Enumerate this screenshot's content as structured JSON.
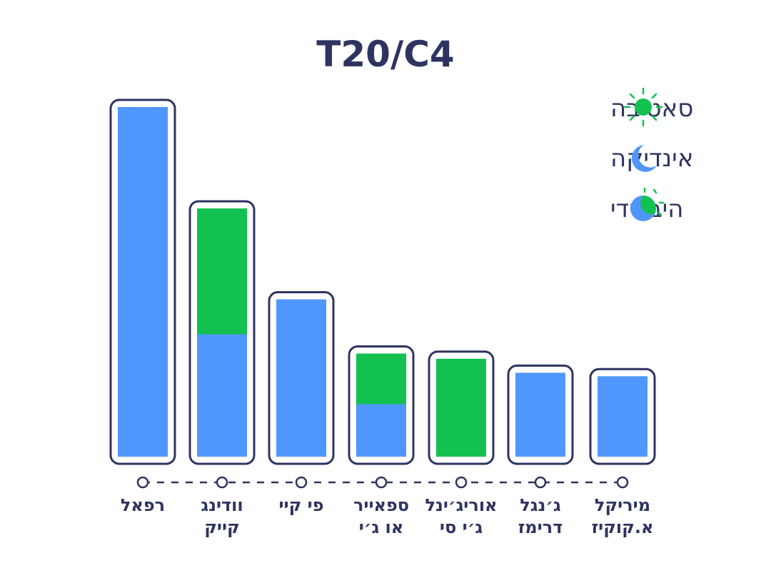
{
  "chart_data": {
    "type": "bar",
    "stacked": true,
    "title": "T20/C4",
    "xlabel": "",
    "ylabel": "",
    "ylim": [
      0,
      100
    ],
    "grid": false,
    "legend_position": "top-right",
    "categories": [
      [
        "רפאל"
      ],
      [
        "וודינג",
        "קייק"
      ],
      [
        "פי קיי"
      ],
      [
        "ספאייר",
        "או ג׳י"
      ],
      [
        "אוריג׳ינל",
        "ג׳י סי"
      ],
      [
        "ג׳נגל",
        "דרימז"
      ],
      [
        "מיריקל",
        "א.קוקיז"
      ]
    ],
    "series": [
      {
        "name": "אינדיקה",
        "key": "indica",
        "color": "#4f97ff",
        "values": [
          100,
          35,
          45,
          15,
          0,
          24,
          23
        ]
      },
      {
        "name": "סאטיבה",
        "key": "sativa",
        "color": "#12c14f",
        "values": [
          0,
          36,
          0,
          14.5,
          28,
          0,
          0
        ]
      }
    ],
    "legend": [
      {
        "label": "סאטיבה",
        "icon": "sun-icon"
      },
      {
        "label": "אינדיקה",
        "icon": "moon-icon"
      },
      {
        "label": "היברידי",
        "icon": "hybrid-icon"
      }
    ]
  },
  "colors": {
    "outline": "#2d3460",
    "indica": "#4f97ff",
    "sativa": "#12c14f"
  }
}
